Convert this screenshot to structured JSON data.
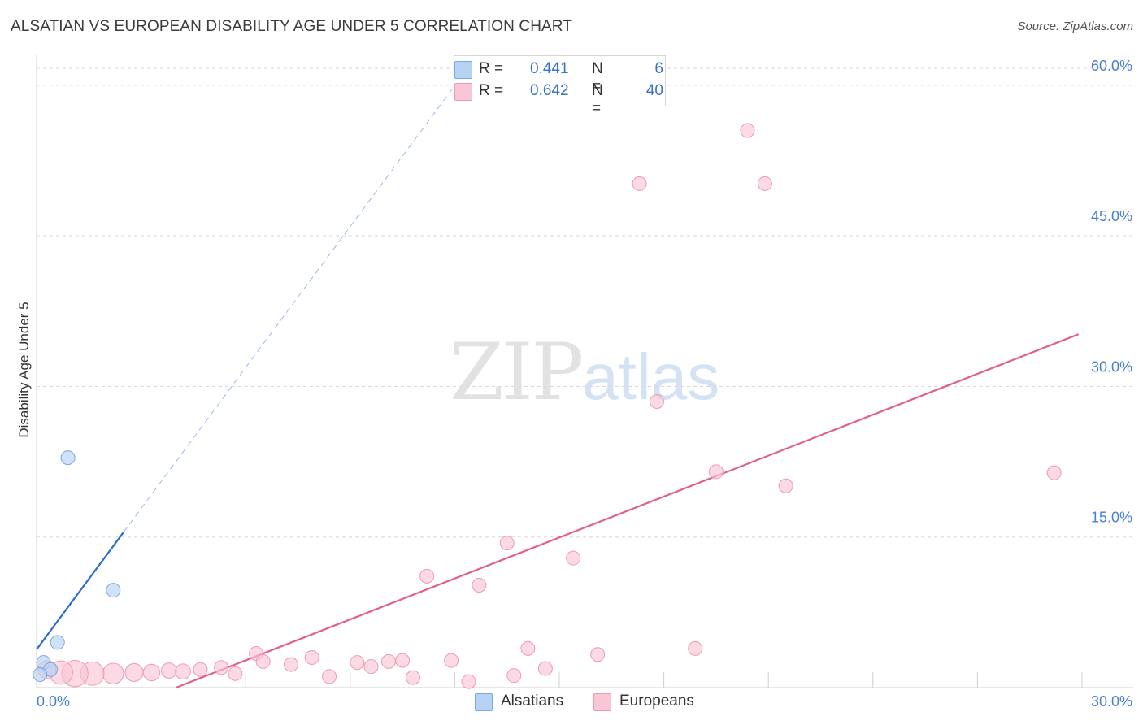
{
  "title": "ALSATIAN VS EUROPEAN DISABILITY AGE UNDER 5 CORRELATION CHART",
  "source": "Source: ZipAtlas.com",
  "watermark": {
    "zip": "ZIP",
    "atlas": "atlas"
  },
  "legend": {
    "series": [
      {
        "name": "Alsatians",
        "r_label": "R =",
        "r_value": "0.441",
        "n_label": "N =",
        "n_value": "6",
        "fill": "#b7d3f4",
        "stroke": "#7aa8e0"
      },
      {
        "name": "Europeans",
        "r_label": "R =",
        "r_value": "0.642",
        "n_label": "N =",
        "n_value": "40",
        "fill": "#f9c6d5",
        "stroke": "#ee9ab4"
      }
    ]
  },
  "chart_data": {
    "type": "scatter",
    "title": "ALSATIAN VS EUROPEAN DISABILITY AGE UNDER 5 CORRELATION CHART",
    "xlabel": "",
    "ylabel": "Disability Age Under 5",
    "xlim": [
      0,
      30
    ],
    "ylim": [
      0,
      62.5
    ],
    "x_ticks": [
      "0.0%",
      "30.0%"
    ],
    "y_ticks": [
      {
        "value": 15,
        "label": "15.0%"
      },
      {
        "value": 30,
        "label": "30.0%"
      },
      {
        "value": 45,
        "label": "45.0%"
      },
      {
        "value": 60,
        "label": "60.0%"
      }
    ],
    "series": [
      {
        "name": "Alsatians",
        "color": "#7aa8e0",
        "fill": "#b7d3f4",
        "points": [
          {
            "x": 0.9,
            "y": 22.9,
            "size": 1
          },
          {
            "x": 2.2,
            "y": 9.7,
            "size": 1
          },
          {
            "x": 0.6,
            "y": 4.5,
            "size": 1
          },
          {
            "x": 0.2,
            "y": 2.5,
            "size": 1
          },
          {
            "x": 0.4,
            "y": 1.8,
            "size": 1
          },
          {
            "x": 0.1,
            "y": 1.3,
            "size": 1
          }
        ],
        "trend": {
          "x0": 0,
          "y0": 3.8,
          "x1": 2.5,
          "y1": 15.5,
          "dash_x1": 12.2,
          "dash_y1": 60.9,
          "color": "#2e6fcc"
        }
      },
      {
        "name": "Europeans",
        "color": "#ee9ab4",
        "fill": "#f9c6d5",
        "points": [
          {
            "x": 20.4,
            "y": 55.5,
            "size": 1
          },
          {
            "x": 17.3,
            "y": 50.2,
            "size": 1
          },
          {
            "x": 20.9,
            "y": 50.2,
            "size": 1
          },
          {
            "x": 17.8,
            "y": 28.5,
            "size": 1
          },
          {
            "x": 19.5,
            "y": 21.5,
            "size": 1
          },
          {
            "x": 29.2,
            "y": 21.4,
            "size": 1
          },
          {
            "x": 21.5,
            "y": 20.1,
            "size": 1
          },
          {
            "x": 13.5,
            "y": 14.4,
            "size": 1
          },
          {
            "x": 15.4,
            "y": 12.9,
            "size": 1
          },
          {
            "x": 11.2,
            "y": 11.1,
            "size": 1
          },
          {
            "x": 12.7,
            "y": 10.2,
            "size": 1
          },
          {
            "x": 14.1,
            "y": 3.9,
            "size": 1
          },
          {
            "x": 18.9,
            "y": 3.9,
            "size": 1
          },
          {
            "x": 16.1,
            "y": 3.3,
            "size": 1
          },
          {
            "x": 6.3,
            "y": 3.4,
            "size": 1
          },
          {
            "x": 7.9,
            "y": 3.0,
            "size": 1
          },
          {
            "x": 6.5,
            "y": 2.6,
            "size": 1
          },
          {
            "x": 7.3,
            "y": 2.3,
            "size": 1
          },
          {
            "x": 9.2,
            "y": 2.5,
            "size": 1
          },
          {
            "x": 10.1,
            "y": 2.6,
            "size": 1
          },
          {
            "x": 10.5,
            "y": 2.7,
            "size": 1
          },
          {
            "x": 11.9,
            "y": 2.7,
            "size": 1
          },
          {
            "x": 9.6,
            "y": 2.1,
            "size": 1
          },
          {
            "x": 5.3,
            "y": 2.0,
            "size": 1
          },
          {
            "x": 14.6,
            "y": 1.9,
            "size": 1
          },
          {
            "x": 4.7,
            "y": 1.8,
            "size": 1
          },
          {
            "x": 3.8,
            "y": 1.7,
            "size": 1.1
          },
          {
            "x": 4.2,
            "y": 1.6,
            "size": 1.1
          },
          {
            "x": 3.3,
            "y": 1.5,
            "size": 1.2
          },
          {
            "x": 5.7,
            "y": 1.4,
            "size": 1
          },
          {
            "x": 2.8,
            "y": 1.5,
            "size": 1.3
          },
          {
            "x": 2.2,
            "y": 1.4,
            "size": 1.5
          },
          {
            "x": 1.6,
            "y": 1.4,
            "size": 1.7
          },
          {
            "x": 1.1,
            "y": 1.4,
            "size": 1.9
          },
          {
            "x": 0.7,
            "y": 1.5,
            "size": 1.7
          },
          {
            "x": 0.3,
            "y": 1.8,
            "size": 1.3
          },
          {
            "x": 8.4,
            "y": 1.1,
            "size": 1
          },
          {
            "x": 10.8,
            "y": 1.0,
            "size": 1
          },
          {
            "x": 13.7,
            "y": 1.2,
            "size": 1
          },
          {
            "x": 12.4,
            "y": 0.6,
            "size": 1
          }
        ],
        "trend": {
          "x0": 4.0,
          "y0": 0,
          "x1": 29.9,
          "y1": 35.2,
          "color": "#e0608b"
        }
      }
    ]
  }
}
